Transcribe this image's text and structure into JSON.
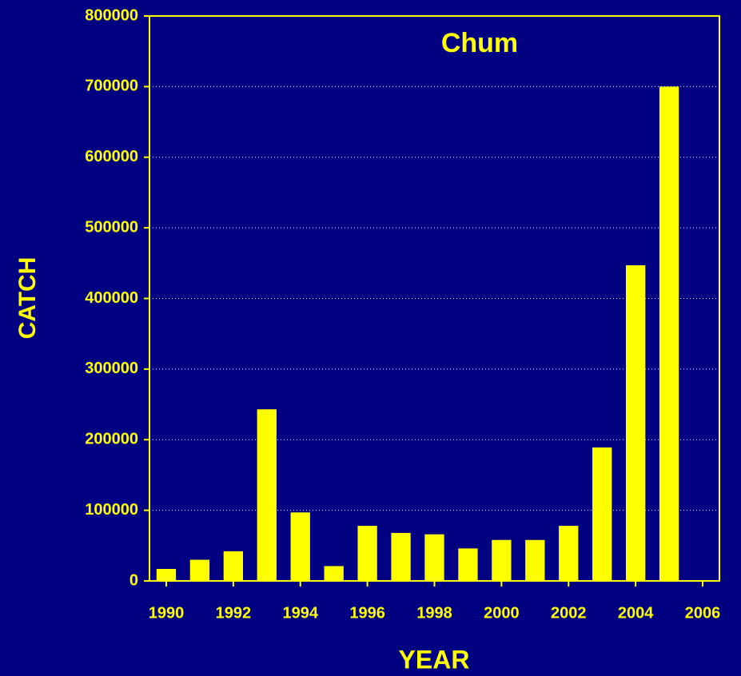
{
  "chart_data": {
    "type": "bar",
    "title": "Chum",
    "x_label": "YEAR",
    "y_label": "CATCH",
    "categories": [
      "1990",
      null,
      "1992",
      null,
      "1994",
      null,
      "1996",
      null,
      "1998",
      null,
      "2000",
      null,
      "2002",
      null,
      "2004",
      null,
      "2006"
    ],
    "values": [
      17000,
      30000,
      42000,
      243000,
      97000,
      21000,
      78000,
      68000,
      66000,
      46000,
      58000,
      58000,
      78000,
      189000,
      447000,
      700000,
      1000
    ],
    "color": "#ffff00",
    "ylim": [
      0,
      800000
    ],
    "yticks": [
      0,
      100000,
      200000,
      300000,
      400000,
      500000,
      600000,
      700000,
      800000
    ],
    "grid": true
  }
}
